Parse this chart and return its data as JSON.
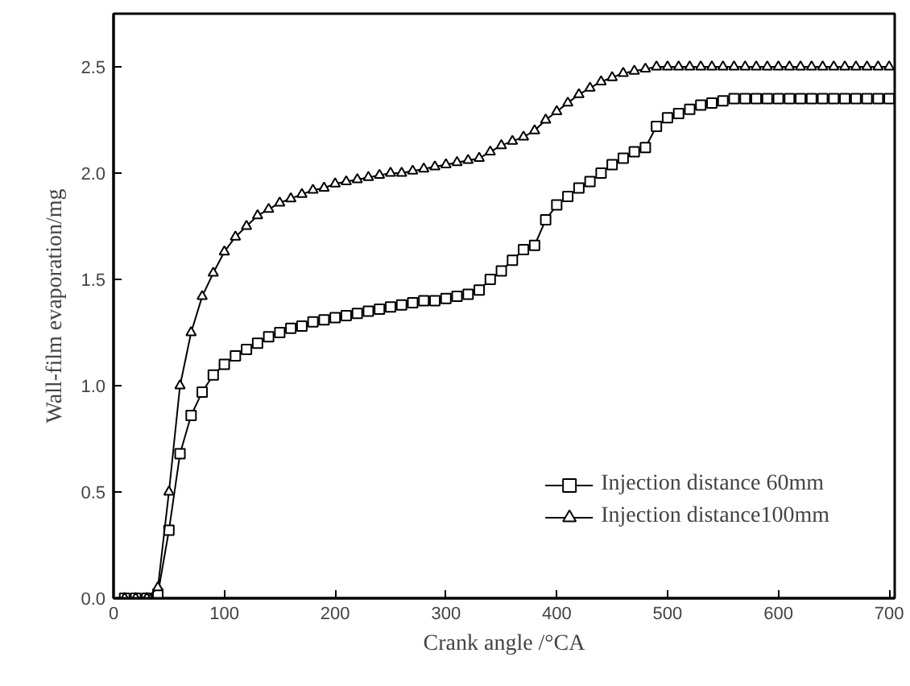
{
  "chart_data": {
    "type": "line",
    "xlabel": "Crank angle /°CA",
    "ylabel": "Wall-film evaporation/mg",
    "x": [
      10,
      20,
      30,
      40,
      50,
      60,
      70,
      80,
      90,
      100,
      110,
      120,
      130,
      140,
      150,
      160,
      170,
      180,
      190,
      200,
      210,
      220,
      230,
      240,
      250,
      260,
      270,
      280,
      290,
      300,
      310,
      320,
      330,
      340,
      350,
      360,
      370,
      380,
      390,
      400,
      410,
      420,
      430,
      440,
      450,
      460,
      470,
      480,
      490,
      500,
      510,
      520,
      530,
      540,
      550,
      560,
      570,
      580,
      590,
      600,
      610,
      620,
      630,
      640,
      650,
      660,
      670,
      680,
      690,
      700
    ],
    "series": [
      {
        "name": "Injection distance 60mm",
        "color": "#000000",
        "marker": "square",
        "values": [
          0,
          0,
          0,
          0.02,
          0.32,
          0.68,
          0.86,
          0.97,
          1.05,
          1.1,
          1.14,
          1.17,
          1.2,
          1.23,
          1.25,
          1.27,
          1.28,
          1.3,
          1.31,
          1.32,
          1.33,
          1.34,
          1.35,
          1.36,
          1.37,
          1.38,
          1.39,
          1.4,
          1.4,
          1.41,
          1.42,
          1.43,
          1.45,
          1.5,
          1.54,
          1.59,
          1.64,
          1.66,
          1.78,
          1.85,
          1.89,
          1.93,
          1.96,
          2.0,
          2.04,
          2.07,
          2.1,
          2.12,
          2.22,
          2.26,
          2.28,
          2.3,
          2.32,
          2.33,
          2.34,
          2.35,
          2.35,
          2.35,
          2.35,
          2.35,
          2.35,
          2.35,
          2.35,
          2.35,
          2.35,
          2.35,
          2.35,
          2.35,
          2.35,
          2.35
        ]
      },
      {
        "name": "Injection distance100mm",
        "color": "#000000",
        "marker": "triangle",
        "values": [
          0,
          0,
          0,
          0.05,
          0.5,
          1.0,
          1.25,
          1.42,
          1.53,
          1.63,
          1.7,
          1.75,
          1.8,
          1.83,
          1.86,
          1.88,
          1.9,
          1.92,
          1.93,
          1.95,
          1.96,
          1.97,
          1.98,
          1.99,
          2.0,
          2.0,
          2.01,
          2.02,
          2.03,
          2.04,
          2.05,
          2.06,
          2.07,
          2.1,
          2.13,
          2.15,
          2.17,
          2.2,
          2.25,
          2.29,
          2.33,
          2.37,
          2.4,
          2.43,
          2.45,
          2.47,
          2.48,
          2.49,
          2.5,
          2.5,
          2.5,
          2.5,
          2.5,
          2.5,
          2.5,
          2.5,
          2.5,
          2.5,
          2.5,
          2.5,
          2.5,
          2.5,
          2.5,
          2.5,
          2.5,
          2.5,
          2.5,
          2.5,
          2.5,
          2.5
        ]
      }
    ],
    "xlim": [
      0,
      705
    ],
    "ylim": [
      0,
      2.75
    ],
    "xticks": [
      0,
      100,
      200,
      300,
      400,
      500,
      600,
      700
    ],
    "yticks": [
      {
        "value": 0,
        "label": "0.0"
      },
      {
        "value": 0.5,
        "label": "0.5"
      },
      {
        "value": 1,
        "label": "1.0"
      },
      {
        "value": 1.5,
        "label": "1.5"
      },
      {
        "value": 2,
        "label": "2.0"
      },
      {
        "value": 2.5,
        "label": "2.5"
      }
    ],
    "grid": false,
    "legend": "bottom right",
    "line_style": "solid"
  }
}
